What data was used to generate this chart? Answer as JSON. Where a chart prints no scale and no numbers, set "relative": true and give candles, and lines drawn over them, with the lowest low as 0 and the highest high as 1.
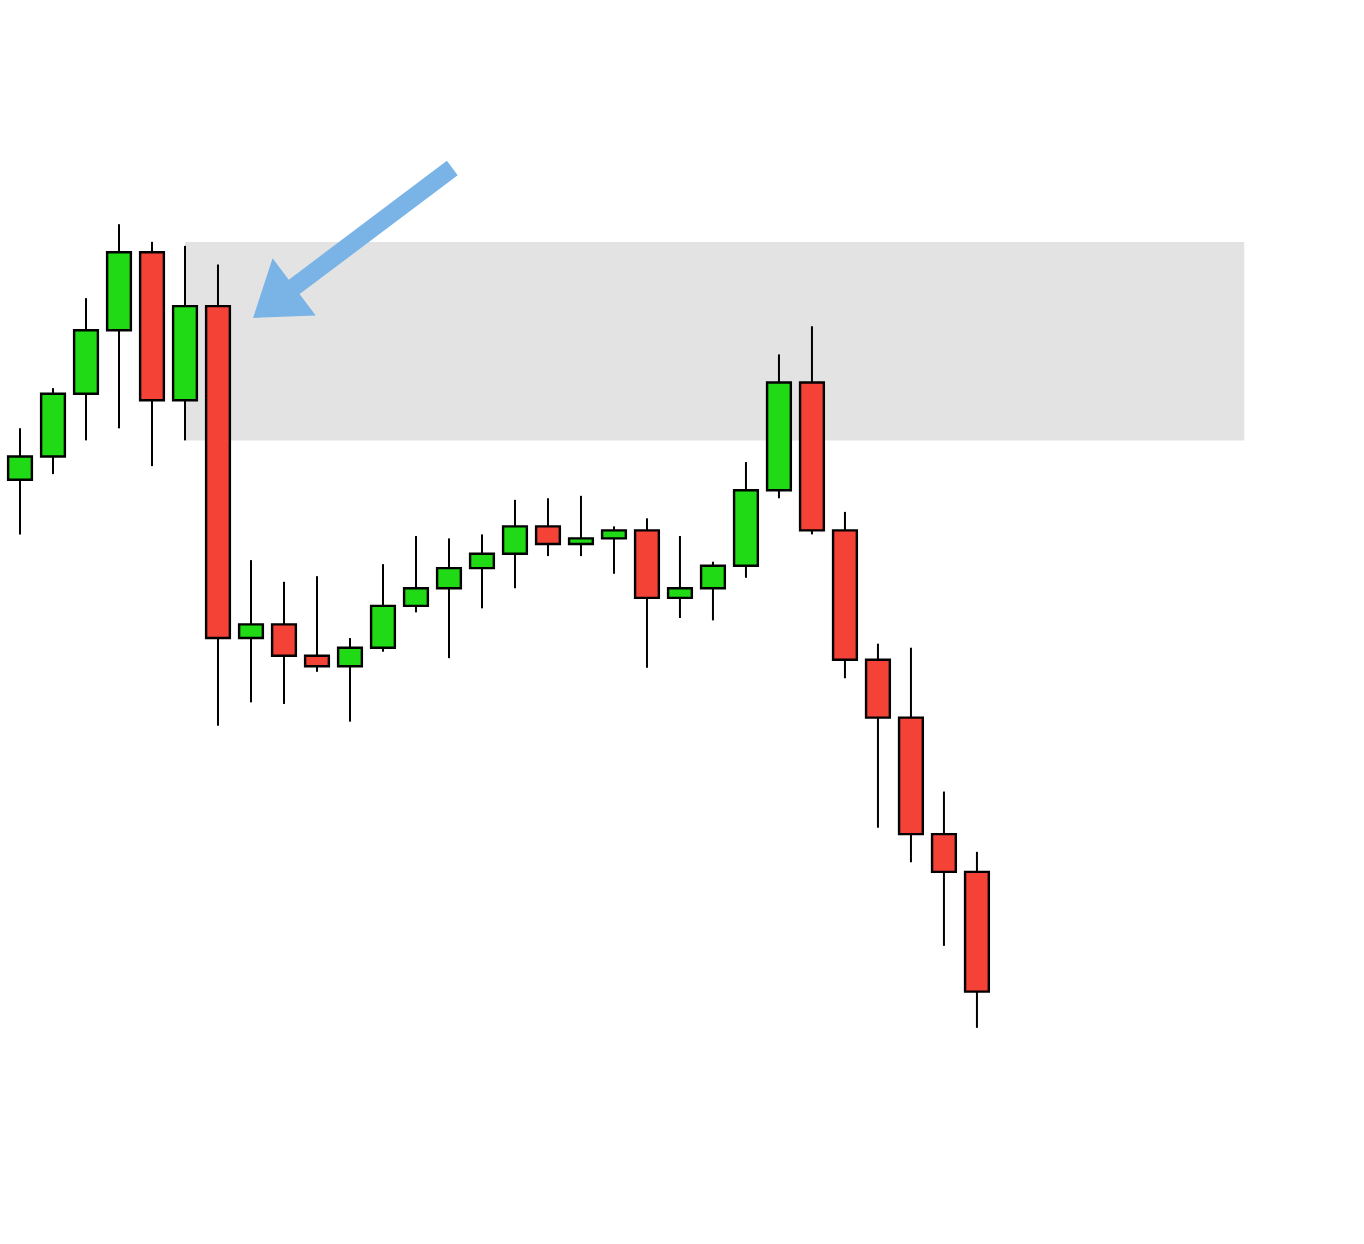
{
  "chart_data": {
    "type": "candlestick",
    "relative": true,
    "categories": [
      null,
      null,
      null,
      null,
      null,
      null,
      null,
      null,
      null,
      null,
      null,
      null,
      null,
      null,
      null,
      null,
      null,
      null,
      null,
      null,
      null,
      null,
      null,
      null,
      null,
      null,
      null,
      null,
      null,
      null
    ],
    "ohlc": [
      [
        0.682,
        0.746,
        0.614,
        0.711
      ],
      [
        0.711,
        0.796,
        0.689,
        0.789
      ],
      [
        0.789,
        0.908,
        0.731,
        0.868
      ],
      [
        0.868,
        1,
        0.746,
        0.965
      ],
      [
        0.965,
        0.978,
        0.699,
        0.781
      ],
      [
        0.781,
        0.973,
        0.731,
        0.898
      ],
      [
        0.898,
        0.95,
        0.376,
        0.485
      ],
      [
        0.485,
        0.582,
        0.405,
        0.502
      ],
      [
        0.502,
        0.555,
        0.403,
        0.463
      ],
      [
        0.463,
        0.562,
        0.443,
        0.45
      ],
      [
        0.45,
        0.485,
        0.381,
        0.473
      ],
      [
        0.473,
        0.577,
        0.468,
        0.525
      ],
      [
        0.525,
        0.612,
        0.517,
        0.547
      ],
      [
        0.547,
        0.609,
        0.46,
        0.572
      ],
      [
        0.572,
        0.614,
        0.522,
        0.59
      ],
      [
        0.59,
        0.657,
        0.547,
        0.624
      ],
      [
        0.624,
        0.659,
        0.587,
        0.602
      ],
      [
        0.602,
        0.662,
        0.587,
        0.609
      ],
      [
        0.609,
        0.624,
        0.565,
        0.619
      ],
      [
        0.619,
        0.634,
        0.448,
        0.535
      ],
      [
        0.535,
        0.612,
        0.51,
        0.547
      ],
      [
        0.547,
        0.58,
        0.507,
        0.575
      ],
      [
        0.575,
        0.704,
        0.56,
        0.669
      ],
      [
        0.669,
        0.838,
        0.659,
        0.803
      ],
      [
        0.803,
        0.873,
        0.614,
        0.619
      ],
      [
        0.619,
        0.642,
        0.435,
        0.458
      ],
      [
        0.458,
        0.478,
        0.249,
        0.386
      ],
      [
        0.386,
        0.473,
        0.206,
        0.241
      ],
      [
        0.241,
        0.294,
        0.102,
        0.194
      ],
      [
        0.194,
        0.219,
        0,
        0.045
      ]
    ],
    "colors": [
      "#21da16",
      "#21da16",
      "#21da16",
      "#21da16",
      "#f44336",
      "#21da16",
      "#f44336",
      "#21da16",
      "#f44336",
      "#f44336",
      "#21da16",
      "#21da16",
      "#21da16",
      "#21da16",
      "#21da16",
      "#21da16",
      "#f44336",
      "#21da16",
      "#21da16",
      "#f44336",
      "#21da16",
      "#21da16",
      "#21da16",
      "#21da16",
      "#f44336",
      "#f44336",
      "#f44336",
      "#f44336",
      "#f44336",
      "#f44336"
    ],
    "bands": [
      {
        "axis": "y",
        "from": 0.731,
        "to": 0.978,
        "color": "#e3e3e3"
      }
    ]
  }
}
